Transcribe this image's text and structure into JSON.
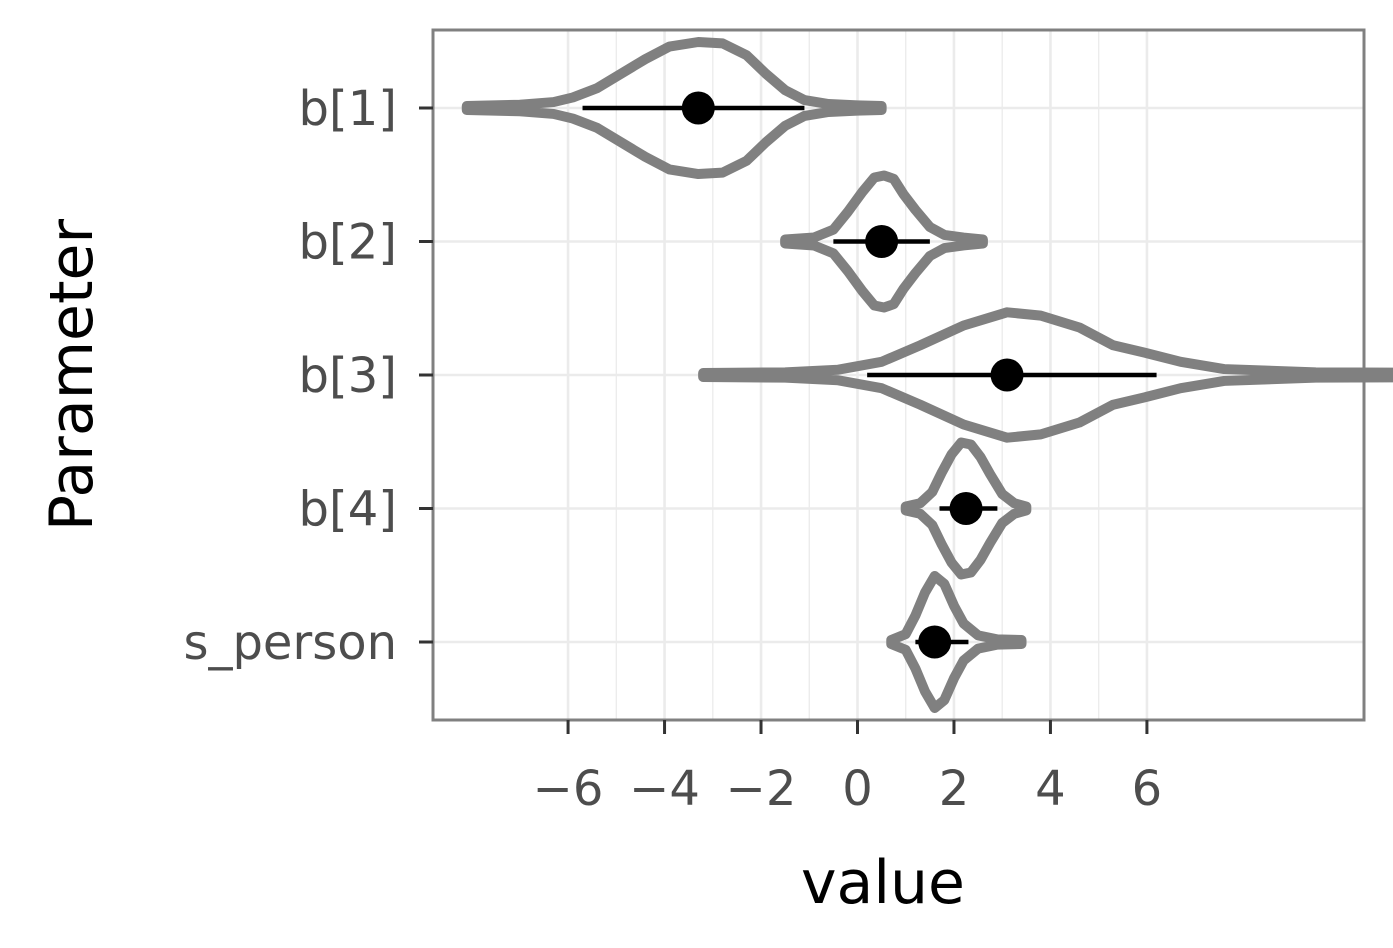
{
  "chart_data": {
    "type": "violin",
    "xlabel": "value",
    "ylabel": "Parameter",
    "xlim": [
      -8.8,
      10.5
    ],
    "x_ticks": [
      -6,
      -4,
      -2,
      0,
      2,
      4,
      6
    ],
    "x_tick_labels": [
      "−6",
      "−4",
      "−2",
      "0",
      "2",
      "4",
      "6"
    ],
    "categories": [
      "b[1]",
      "b[2]",
      "b[3]",
      "b[4]",
      "s_person"
    ],
    "grid": true,
    "colors": {
      "violin": "#808080",
      "point": "#000000",
      "grid": "#ebebeb",
      "border": "#808080"
    },
    "series": [
      {
        "category": "b[1]",
        "median": -3.3,
        "interval": [
          -5.7,
          -1.1
        ],
        "range": [
          -8.1,
          0.5
        ],
        "density": [
          [
            -8.1,
            0.03
          ],
          [
            -7.0,
            0.05
          ],
          [
            -6.3,
            0.09
          ],
          [
            -5.9,
            0.16
          ],
          [
            -5.4,
            0.3
          ],
          [
            -4.9,
            0.52
          ],
          [
            -4.4,
            0.74
          ],
          [
            -3.9,
            0.93
          ],
          [
            -3.3,
            1.0
          ],
          [
            -2.8,
            0.98
          ],
          [
            -2.3,
            0.8
          ],
          [
            -1.9,
            0.52
          ],
          [
            -1.5,
            0.27
          ],
          [
            -1.1,
            0.12
          ],
          [
            -0.6,
            0.06
          ],
          [
            0,
            0.04
          ],
          [
            0.5,
            0.03
          ]
        ]
      },
      {
        "category": "b[2]",
        "median": 0.5,
        "interval": [
          -0.5,
          1.5
        ],
        "range": [
          -1.5,
          2.6
        ],
        "density": [
          [
            -1.5,
            0.03
          ],
          [
            -0.9,
            0.06
          ],
          [
            -0.5,
            0.18
          ],
          [
            -0.2,
            0.45
          ],
          [
            0.1,
            0.75
          ],
          [
            0.35,
            0.97
          ],
          [
            0.55,
            1.0
          ],
          [
            0.75,
            0.95
          ],
          [
            0.95,
            0.72
          ],
          [
            1.2,
            0.48
          ],
          [
            1.5,
            0.22
          ],
          [
            1.8,
            0.1
          ],
          [
            2.2,
            0.06
          ],
          [
            2.6,
            0.03
          ]
        ]
      },
      {
        "category": "b[3]",
        "median": 3.1,
        "interval": [
          0.2,
          6.2
        ],
        "range": [
          -3.2,
          13.2
        ],
        "density": [
          [
            -3.2,
            0.03
          ],
          [
            -1.5,
            0.04
          ],
          [
            -0.4,
            0.08
          ],
          [
            0.5,
            0.2
          ],
          [
            1.3,
            0.45
          ],
          [
            2.2,
            0.75
          ],
          [
            3.1,
            0.95
          ],
          [
            3.8,
            0.9
          ],
          [
            4.6,
            0.72
          ],
          [
            5.3,
            0.45
          ],
          [
            6.0,
            0.33
          ],
          [
            6.7,
            0.2
          ],
          [
            7.6,
            0.09
          ],
          [
            9.5,
            0.04
          ],
          [
            13.2,
            0.03
          ]
        ]
      },
      {
        "category": "b[4]",
        "median": 2.25,
        "interval": [
          1.7,
          2.9
        ],
        "range": [
          1.0,
          3.5
        ],
        "density": [
          [
            1.0,
            0.03
          ],
          [
            1.3,
            0.08
          ],
          [
            1.55,
            0.25
          ],
          [
            1.75,
            0.55
          ],
          [
            1.95,
            0.82
          ],
          [
            2.15,
            1.0
          ],
          [
            2.35,
            0.97
          ],
          [
            2.55,
            0.78
          ],
          [
            2.75,
            0.52
          ],
          [
            3.0,
            0.22
          ],
          [
            3.25,
            0.08
          ],
          [
            3.5,
            0.03
          ]
        ]
      },
      {
        "category": "s_person",
        "median": 1.6,
        "interval": [
          1.2,
          2.3
        ],
        "range": [
          0.7,
          3.4
        ],
        "density": [
          [
            0.7,
            0.03
          ],
          [
            1.0,
            0.12
          ],
          [
            1.2,
            0.4
          ],
          [
            1.4,
            0.75
          ],
          [
            1.6,
            1.0
          ],
          [
            1.8,
            0.88
          ],
          [
            2.0,
            0.55
          ],
          [
            2.2,
            0.28
          ],
          [
            2.5,
            0.1
          ],
          [
            2.9,
            0.04
          ],
          [
            3.4,
            0.03
          ]
        ]
      }
    ]
  }
}
